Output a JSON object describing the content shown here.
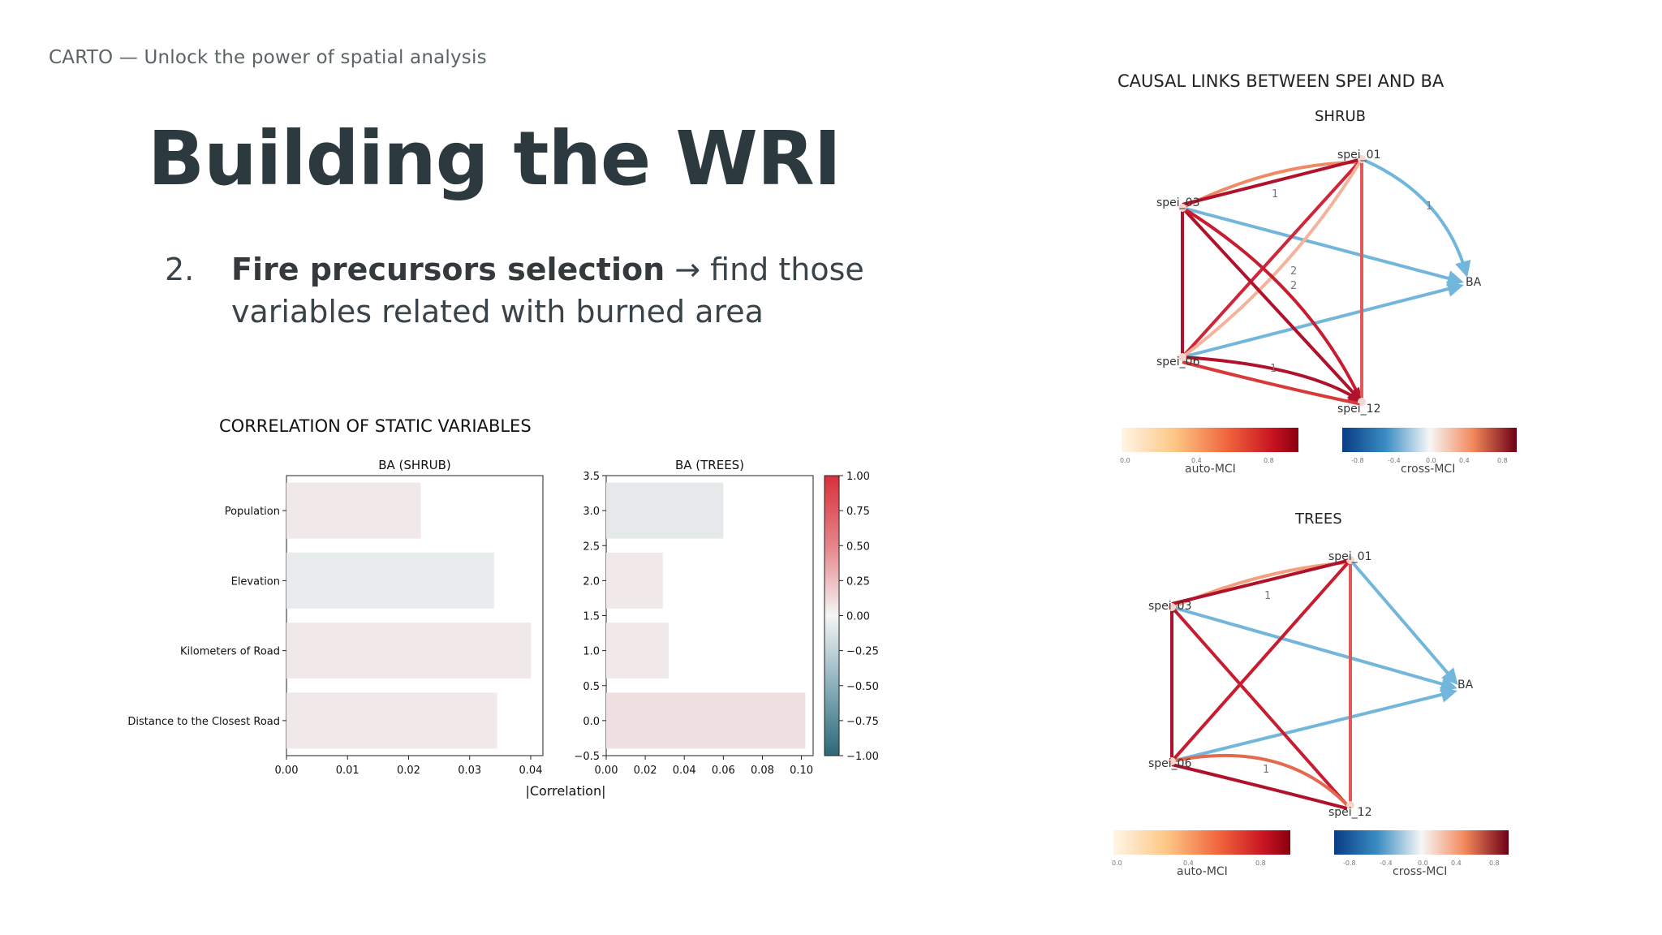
{
  "header": {
    "brand": "CARTO — Unlock the power of spatial analysis"
  },
  "slide": {
    "title": "Building the WRI",
    "point_number": "2.",
    "point_bold": "Fire precursors selection",
    "point_rest": "→ find those variables related with burned area"
  },
  "correlation_section": {
    "title": "CORRELATION OF STATIC VARIABLES"
  },
  "causal_section": {
    "title": "CAUSAL LINKS BETWEEN SPEI AND BA",
    "shrub_label": "SHRUB",
    "trees_label": "TREES",
    "nodes": [
      "spei_01",
      "spei_03",
      "spei_06",
      "spei_12",
      "BA"
    ],
    "auto_label": "auto-MCI",
    "cross_label": "cross-MCI",
    "auto_ticks": [
      "0.0",
      "0.4",
      "0.8"
    ],
    "cross_ticks": [
      "-0.8",
      "-0.4",
      "0.0",
      "0.4",
      "0.8"
    ],
    "link_labels": [
      "1",
      "1",
      "2",
      "2",
      "1"
    ]
  },
  "chart_data": [
    {
      "type": "bar",
      "orientation": "horizontal",
      "title": "BA (SHRUB)",
      "categories": [
        "Population",
        "Elevation",
        "Kilometers of Road",
        "Distance to the Closest Road"
      ],
      "values": [
        0.022,
        0.034,
        0.04,
        0.0345
      ],
      "xlabel": "|Correlation|",
      "xlim": [
        0,
        0.042
      ],
      "xticks": [
        "0.00",
        "0.01",
        "0.02",
        "0.03",
        "0.04"
      ],
      "bar_colors": [
        "#f1e8e9",
        "#e9eced",
        "#f1e8e9",
        "#f1e8e9"
      ]
    },
    {
      "type": "bar",
      "orientation": "horizontal",
      "title": "BA (TREES)",
      "y": [
        3.0,
        2.0,
        1.0,
        0.0
      ],
      "values": [
        0.06,
        0.029,
        0.032,
        0.102
      ],
      "xlim": [
        0,
        0.106
      ],
      "ylim": [
        -0.5,
        3.5
      ],
      "xticks": [
        "0.00",
        "0.02",
        "0.04",
        "0.06",
        "0.08",
        "0.10"
      ],
      "yticks": [
        "3.5",
        "3.0",
        "2.5",
        "2.0",
        "1.5",
        "1.0",
        "0.5",
        "0.0",
        "−0.5"
      ],
      "bar_colors": [
        "#e6e9ea",
        "#f1e8e9",
        "#f1e8e9",
        "#efe1e2"
      ]
    },
    {
      "type": "heatmap",
      "colorbar_ticks": [
        "1.00",
        "0.75",
        "0.50",
        "0.25",
        "0.00",
        "−0.25",
        "−0.50",
        "−0.75",
        "−1.00"
      ],
      "range": [
        -1,
        1
      ]
    }
  ]
}
